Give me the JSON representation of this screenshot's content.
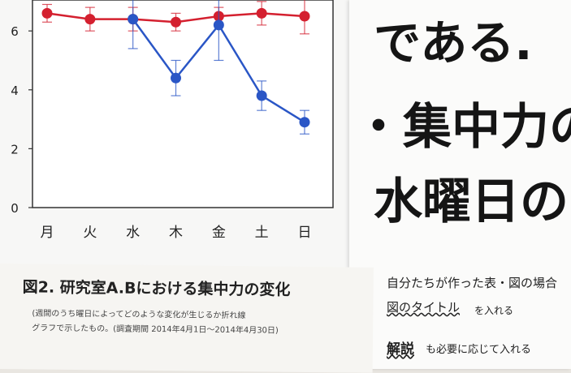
{
  "chart_data": {
    "type": "line",
    "categories": [
      "月",
      "火",
      "水",
      "木",
      "金",
      "土",
      "日"
    ],
    "yticks": [
      "0",
      "2",
      "4",
      "6"
    ],
    "ylim": [
      0,
      6.5
    ],
    "series": [
      {
        "color": "#d4202f",
        "values": [
          6.6,
          6.4,
          6.4,
          6.3,
          6.5,
          6.6,
          6.5
        ],
        "errors": [
          0.3,
          0.4,
          0.4,
          0.3,
          0.3,
          0.4,
          0.6
        ]
      },
      {
        "color": "#2a56c6",
        "values": [
          null,
          null,
          6.4,
          4.4,
          6.2,
          3.8,
          2.9
        ],
        "errors": [
          0,
          0,
          1.0,
          0.6,
          1.2,
          0.5,
          0.4
        ]
      }
    ]
  },
  "caption": {
    "title": "図2. 研究室A.Bにおける集中力の変化",
    "line1": "(週間のうち曜日によってどのような変化が生じるか折れ線",
    "line2": "グラフで示したもの。(調査期間 2014年4月1日〜2014年4月30日)"
  },
  "note": {
    "big1": "である.",
    "big2": "・集中力の",
    "big3": "水曜日の",
    "memo1": "自分たちが作った表・図の場合",
    "memo2": "図のタイトル",
    "memo2b": "を入れる",
    "memo3": "解説",
    "memo3b": "も必要に応じて入れる",
    "arrow": "←"
  }
}
